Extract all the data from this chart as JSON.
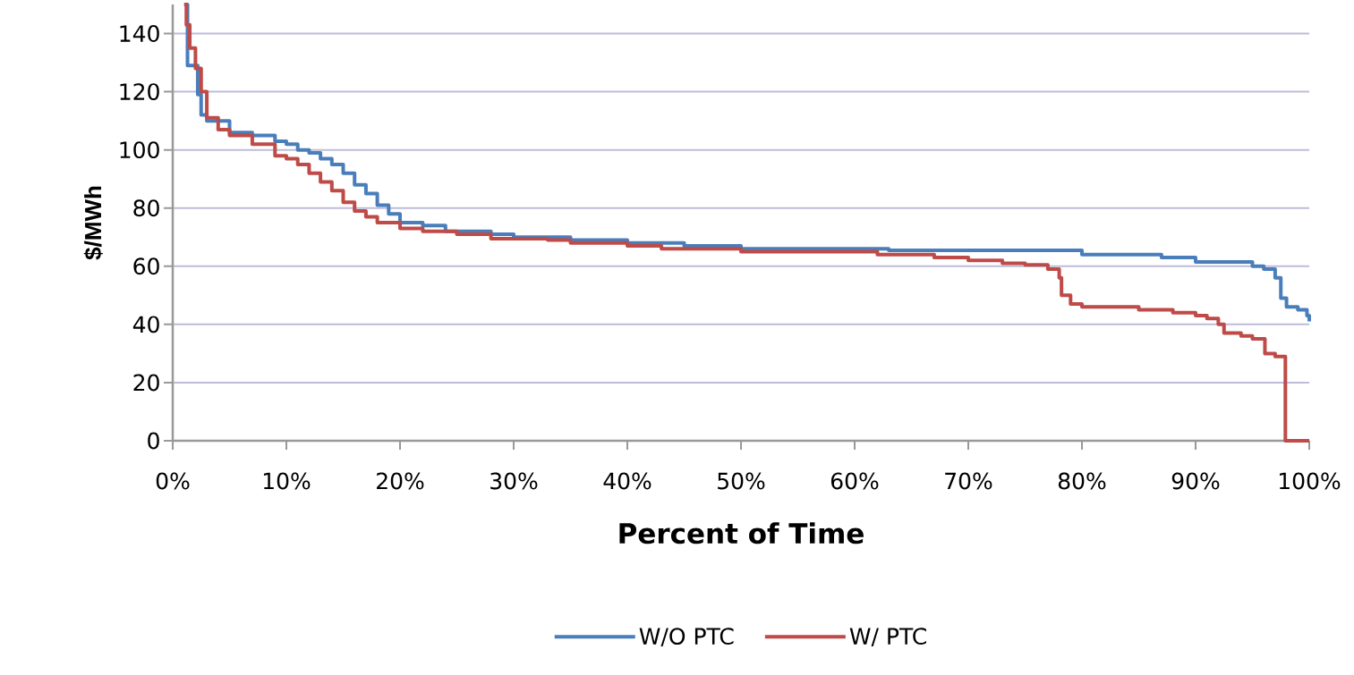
{
  "chart_data": {
    "type": "step",
    "xlabel": "Percent of Time",
    "ylabel": "$/MWh",
    "xlim": [
      0,
      100
    ],
    "ylim": [
      0,
      150
    ],
    "xticks": [
      {
        "value": 0,
        "label": "0%"
      },
      {
        "value": 10,
        "label": "10%"
      },
      {
        "value": 20,
        "label": "20%"
      },
      {
        "value": 30,
        "label": "30%"
      },
      {
        "value": 40,
        "label": "40%"
      },
      {
        "value": 50,
        "label": "50%"
      },
      {
        "value": 60,
        "label": "60%"
      },
      {
        "value": 70,
        "label": "70%"
      },
      {
        "value": 80,
        "label": "80%"
      },
      {
        "value": 90,
        "label": "90%"
      },
      {
        "value": 100,
        "label": "100%"
      }
    ],
    "yticks": [
      0,
      20,
      40,
      60,
      80,
      100,
      120,
      140
    ],
    "grid": "y",
    "legend": "bottom",
    "marker": "none",
    "line_style": "solid",
    "series": [
      {
        "name": "W/O PTC",
        "color": "#4a7ebb",
        "x": [
          1.2,
          1.3,
          2.2,
          2.5,
          3,
          4,
          5,
          7,
          9,
          10,
          11,
          12,
          13,
          14,
          15,
          16,
          17,
          18,
          19,
          20,
          22,
          24,
          28,
          30,
          35,
          40,
          45,
          50,
          63,
          80,
          87,
          90,
          95,
          96,
          97,
          97.5,
          98,
          99,
          99.8,
          100
        ],
        "values": [
          150,
          129,
          119,
          112,
          110,
          110,
          106,
          105,
          103,
          102,
          100,
          99,
          97,
          95,
          92,
          88,
          85,
          81,
          78,
          75,
          74,
          72,
          71,
          70,
          69,
          68,
          67,
          66,
          65.5,
          64,
          63,
          61.5,
          60,
          59,
          56,
          49,
          46,
          45,
          43,
          41
        ]
      },
      {
        "name": "W/ PTC",
        "color": "#be4b48",
        "x": [
          1.0,
          1.2,
          1.5,
          2,
          2.5,
          3,
          4,
          5,
          7,
          9,
          10,
          11,
          12,
          13,
          14,
          15,
          16,
          17,
          18,
          20,
          22,
          25,
          28,
          33,
          35,
          40,
          43,
          50,
          60,
          62,
          67,
          70,
          73,
          75,
          77,
          78,
          78.2,
          79,
          80,
          85,
          88,
          90,
          91,
          92,
          92.5,
          94,
          95,
          96,
          96.1,
          97,
          97.8,
          97.9,
          100
        ],
        "values": [
          150,
          143,
          135,
          128,
          120,
          111,
          107,
          105,
          102,
          98,
          97,
          95,
          92,
          89,
          86,
          82,
          79,
          77,
          75,
          73,
          72,
          71,
          69.5,
          69,
          68,
          67,
          66,
          65,
          65,
          64,
          63,
          62,
          61,
          60.5,
          59,
          56,
          50,
          47,
          46,
          45,
          44,
          43,
          42,
          40,
          37,
          36,
          35,
          35,
          30,
          29,
          29,
          0,
          0
        ]
      }
    ]
  }
}
